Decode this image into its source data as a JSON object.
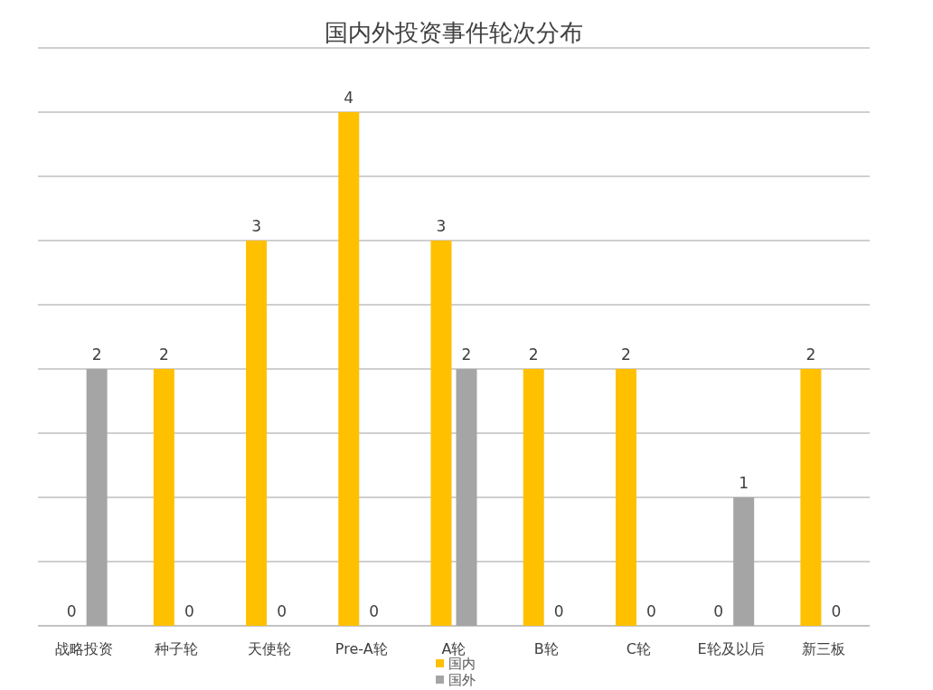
{
  "chart_data": {
    "type": "bar",
    "title": "国内外投资事件轮次分布",
    "categories": [
      "战略投资",
      "种子轮",
      "天使轮",
      "Pre-A轮",
      "A轮",
      "B轮",
      "C轮",
      "E轮及以后",
      "新三板"
    ],
    "series": [
      {
        "name": "国内",
        "color": "#ffc000",
        "values": [
          0,
          2,
          3,
          4,
          3,
          2,
          2,
          0,
          2
        ]
      },
      {
        "name": "国外",
        "color": "#a5a5a5",
        "values": [
          2,
          0,
          0,
          0,
          2,
          0,
          0,
          1,
          0
        ]
      }
    ],
    "ylim": [
      0,
      4.5
    ],
    "yticks": [
      {
        "value": 0,
        "label": null
      },
      {
        "value": 0.5,
        "label": null
      },
      {
        "value": 1,
        "label": null
      },
      {
        "value": 1.5,
        "label": null
      },
      {
        "value": 2,
        "label": null
      },
      {
        "value": 2.5,
        "label": null
      },
      {
        "value": 3,
        "label": null
      },
      {
        "value": 3.5,
        "label": null
      },
      {
        "value": 4,
        "label": null
      },
      {
        "value": 4.5,
        "label": null
      }
    ],
    "tick_labels": "x",
    "grid": "y",
    "legend": "bottom",
    "data_labels": true
  }
}
